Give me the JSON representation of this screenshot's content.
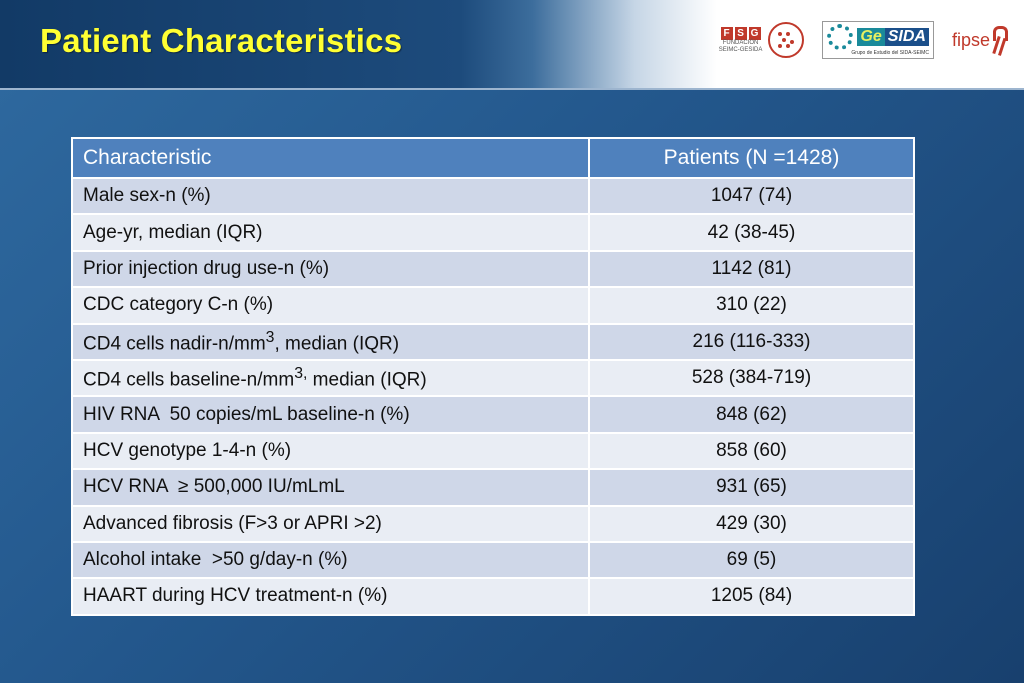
{
  "title": "Patient Characteristics",
  "logos": {
    "fsg_letters": [
      "F",
      "S",
      "G"
    ],
    "fsg_sub": [
      "FUNDACIÓN",
      "SEIMC-GESIDA"
    ],
    "gesida_left": "Ge",
    "gesida_right": "SIDA",
    "gesida_sub": "Grupo de Estudio del SIDA-SEIMC",
    "fipse": "fipse"
  },
  "table": {
    "headers": [
      "Characteristic",
      "Patients (N =1428)"
    ],
    "rows": [
      {
        "label": "Male sex-n (%)",
        "value": "1047 (74)"
      },
      {
        "label": "Age-yr, median (IQR)",
        "value": "42 (38-45)"
      },
      {
        "label": "Prior injection drug use-n (%)",
        "value": "1142 (81)"
      },
      {
        "label": "CDC category C-n (%)",
        "value": "310 (22)"
      },
      {
        "label_pre": "CD4 cells nadir-n/mm",
        "label_sup": "3",
        "label_post": ", median (IQR)",
        "value": "216 (116-333)"
      },
      {
        "label_pre": "CD4 cells baseline-n/mm",
        "label_sup": "3,",
        "label_post": " median (IQR)",
        "value": "528 (384-719)"
      },
      {
        "label": "HIV RNA  50 copies/mL baseline-n (%)",
        "value": "848 (62)"
      },
      {
        "label": "HCV genotype 1-4-n (%)",
        "value": "858 (60)"
      },
      {
        "label": "HCV RNA  ≥ 500,000 IU/mLmL",
        "value": "931 (65)"
      },
      {
        "label": "Advanced fibrosis (F>3 or APRI >2)",
        "value": "429 (30)"
      },
      {
        "label": "Alcohol intake  >50 g/day-n (%)",
        "value": "69 (5)"
      },
      {
        "label": "HAART during HCV treatment-n (%)",
        "value": "1205 (84)"
      }
    ]
  }
}
